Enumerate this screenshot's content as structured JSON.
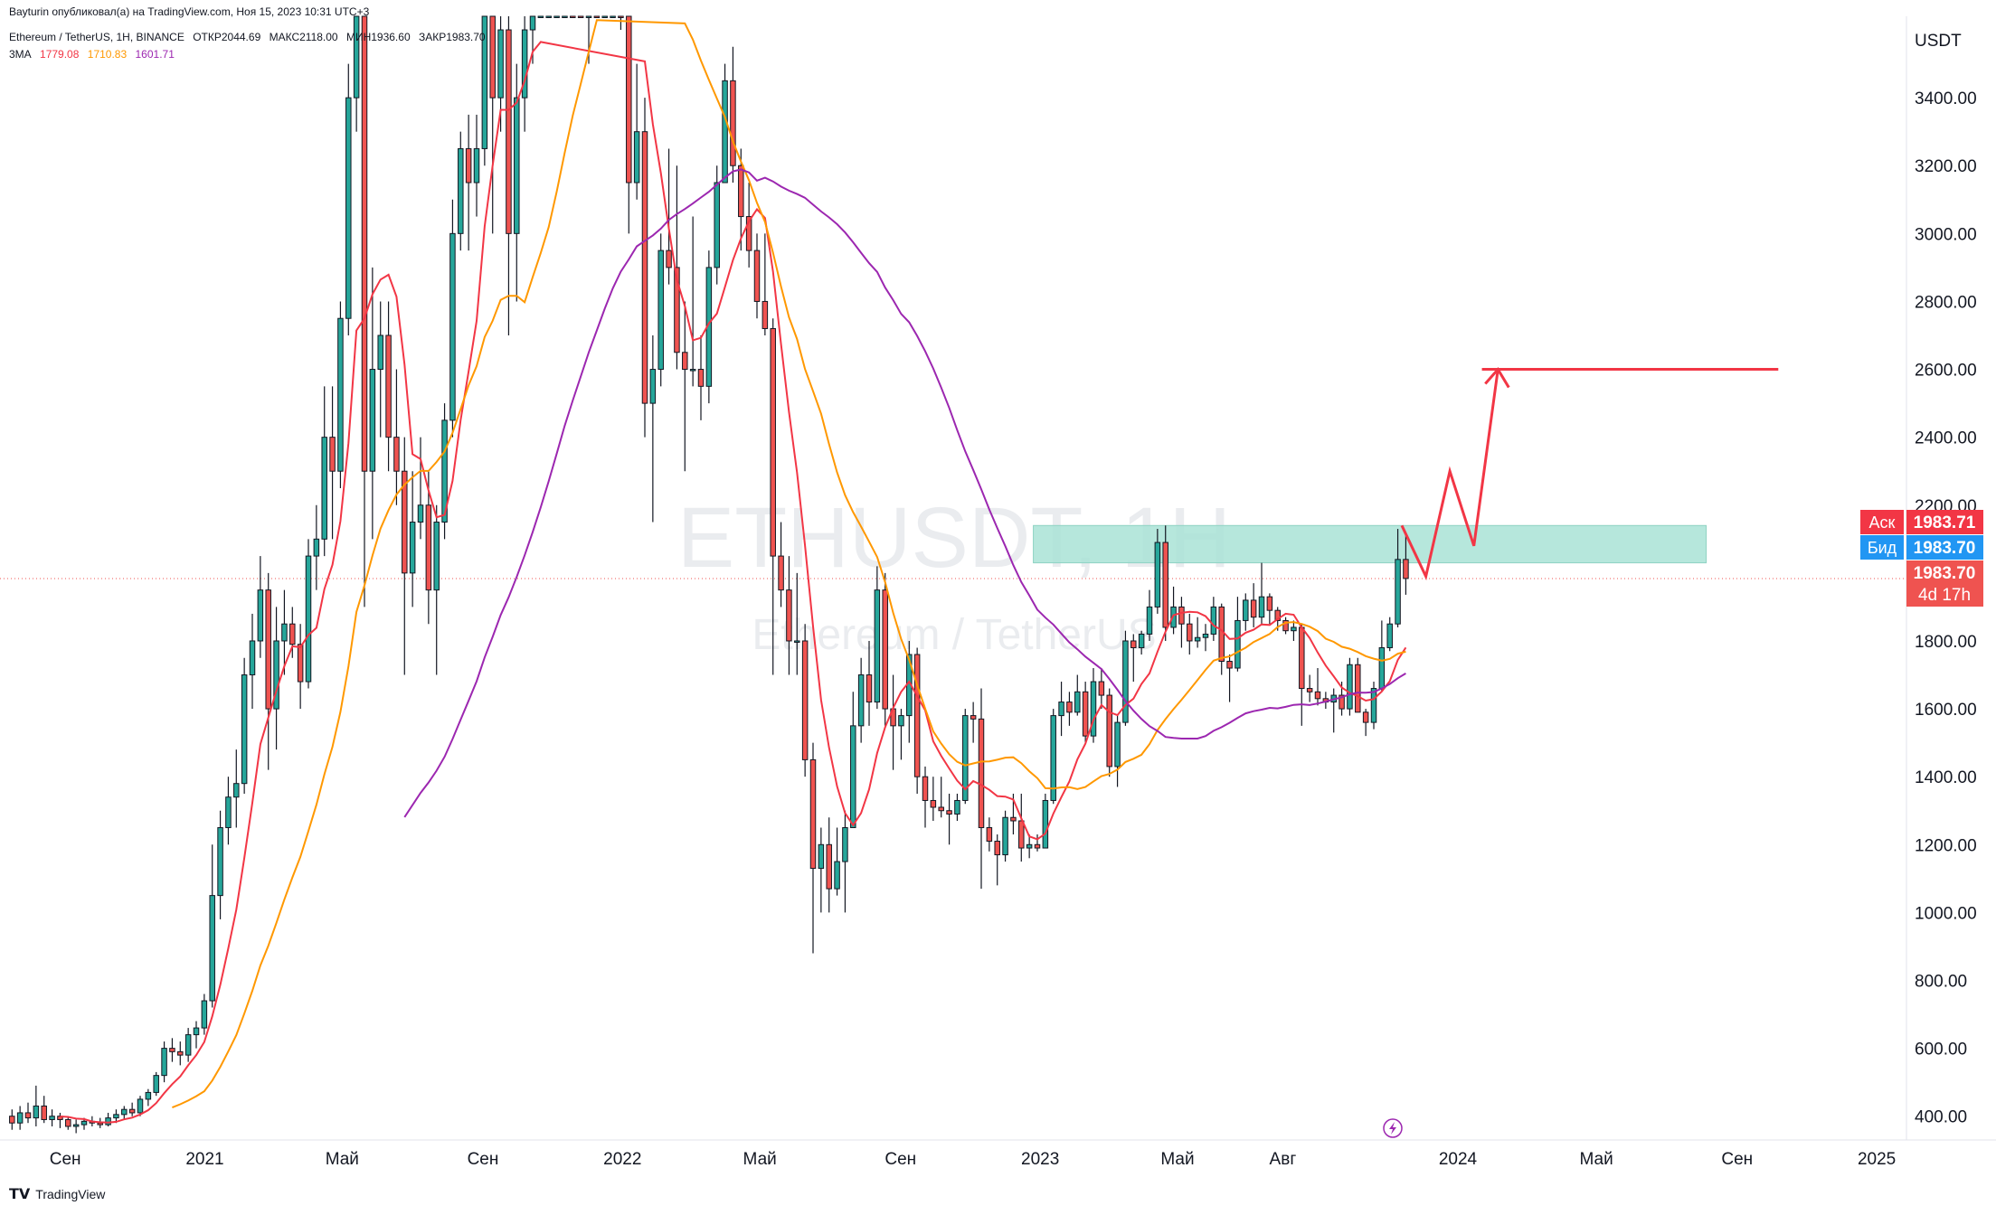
{
  "header": {
    "publisher": "Bayturin опубликовал(а) на TradingView.com, Ноя 15, 2023 10:31 UTC+3",
    "symbol_desc": "Ethereum / TetherUS, 1Н, BINANCE",
    "open": "ОТКР2044.69",
    "high": "МАКС2118.00",
    "low": "МИН1936.60",
    "close": "ЗАКР1983.70",
    "ma_label": "3MA",
    "ma_values": [
      "1779.08",
      "1710.83",
      "1601.71"
    ],
    "ma_colors": [
      "#f23645",
      "#ff9800",
      "#9c27b0"
    ]
  },
  "watermark": {
    "title": "ETHUSDT, 1H",
    "subtitle": "Ethereum / TetherUS"
  },
  "price_axis": {
    "currency": "USDT",
    "ticks": [
      "3400.00",
      "3200.00",
      "3000.00",
      "2800.00",
      "2600.00",
      "2400.00",
      "2200.00",
      "2000.00",
      "1800.00",
      "1600.00",
      "1400.00",
      "1200.00",
      "1000.00",
      "800.00",
      "600.00",
      "400.00"
    ]
  },
  "time_axis": {
    "ticks": [
      "Сен",
      "2021",
      "Май",
      "Сен",
      "2022",
      "Май",
      "Сен",
      "2023",
      "Май",
      "Авг",
      "2024",
      "Май",
      "Сен",
      "2025"
    ]
  },
  "price_tags": {
    "ask_label": "Аск",
    "ask_value": "1983.71",
    "bid_label": "Бид",
    "bid_value": "1983.70",
    "last_value": "1983.70",
    "countdown": "4d 17h",
    "ask_color": "#f23645",
    "bid_color": "#2196f3"
  },
  "footer": {
    "brand": "TradingView"
  },
  "chart_data": {
    "type": "candlestick",
    "symbol": "ETHUSDT",
    "ylim": [
      330,
      3640
    ],
    "x_range": [
      "2020-07-06",
      "2025-01-27"
    ],
    "up_color": "#26a69a",
    "down_color": "#ef5350",
    "candles_weekly_ohlc": [
      [
        "2020-07-13",
        400,
        420,
        360,
        380
      ],
      [
        "2020-07-20",
        380,
        430,
        360,
        410
      ],
      [
        "2020-07-27",
        410,
        440,
        380,
        395
      ],
      [
        "2020-08-03",
        395,
        490,
        370,
        430
      ],
      [
        "2020-08-10",
        430,
        460,
        380,
        390
      ],
      [
        "2020-08-17",
        390,
        420,
        370,
        400
      ],
      [
        "2020-08-24",
        400,
        410,
        365,
        390
      ],
      [
        "2020-08-31",
        390,
        400,
        360,
        370
      ],
      [
        "2020-09-07",
        370,
        390,
        350,
        375
      ],
      [
        "2020-09-14",
        375,
        395,
        360,
        385
      ],
      [
        "2020-09-21",
        385,
        400,
        370,
        380
      ],
      [
        "2020-09-28",
        380,
        395,
        365,
        375
      ],
      [
        "2020-10-05",
        375,
        410,
        370,
        395
      ],
      [
        "2020-10-12",
        395,
        420,
        380,
        405
      ],
      [
        "2020-10-19",
        405,
        430,
        390,
        420
      ],
      [
        "2020-10-26",
        420,
        440,
        400,
        410
      ],
      [
        "2020-11-02",
        410,
        460,
        400,
        450
      ],
      [
        "2020-11-09",
        450,
        480,
        430,
        470
      ],
      [
        "2020-11-16",
        470,
        530,
        460,
        520
      ],
      [
        "2020-11-23",
        520,
        620,
        500,
        600
      ],
      [
        "2020-11-30",
        600,
        630,
        560,
        590
      ],
      [
        "2020-12-07",
        590,
        620,
        550,
        580
      ],
      [
        "2020-12-14",
        580,
        660,
        560,
        640
      ],
      [
        "2020-12-21",
        640,
        680,
        600,
        660
      ],
      [
        "2020-12-28",
        660,
        760,
        640,
        740
      ],
      [
        "2021-01-04",
        740,
        1200,
        720,
        1050
      ],
      [
        "2021-01-11",
        1050,
        1300,
        980,
        1250
      ],
      [
        "2021-01-18",
        1250,
        1400,
        1200,
        1340
      ],
      [
        "2021-01-25",
        1340,
        1480,
        1250,
        1380
      ],
      [
        "2021-02-01",
        1380,
        1750,
        1350,
        1700
      ],
      [
        "2021-02-08",
        1700,
        1880,
        1600,
        1800
      ],
      [
        "2021-02-15",
        1800,
        2050,
        1750,
        1950
      ],
      [
        "2021-02-22",
        1950,
        2000,
        1420,
        1600
      ],
      [
        "2021-03-01",
        1600,
        1900,
        1480,
        1800
      ],
      [
        "2021-03-08",
        1800,
        1950,
        1700,
        1850
      ],
      [
        "2021-03-15",
        1850,
        1900,
        1750,
        1790
      ],
      [
        "2021-03-22",
        1790,
        1850,
        1600,
        1680
      ],
      [
        "2021-03-29",
        1680,
        2100,
        1660,
        2050
      ],
      [
        "2021-04-05",
        2050,
        2200,
        1950,
        2100
      ],
      [
        "2021-04-12",
        2100,
        2550,
        2050,
        2400
      ],
      [
        "2021-04-19",
        2400,
        2550,
        2100,
        2300
      ],
      [
        "2021-04-26",
        2300,
        2800,
        2250,
        2750
      ],
      [
        "2021-05-03",
        2750,
        3500,
        2700,
        3400
      ],
      [
        "2021-05-10",
        3400,
        4200,
        3300,
        4000
      ],
      [
        "2021-05-17",
        4000,
        4100,
        1900,
        2300
      ],
      [
        "2021-05-24",
        2300,
        2900,
        2100,
        2600
      ],
      [
        "2021-05-31",
        2600,
        2800,
        2400,
        2700
      ],
      [
        "2021-06-07",
        2700,
        2800,
        2300,
        2400
      ],
      [
        "2021-06-14",
        2400,
        2600,
        2200,
        2300
      ],
      [
        "2021-06-21",
        2300,
        2400,
        1700,
        2000
      ],
      [
        "2021-06-28",
        2000,
        2300,
        1900,
        2150
      ],
      [
        "2021-07-05",
        2150,
        2400,
        2100,
        2200
      ],
      [
        "2021-07-12",
        2200,
        2300,
        1850,
        1950
      ],
      [
        "2021-07-19",
        1950,
        2200,
        1700,
        2150
      ],
      [
        "2021-07-26",
        2150,
        2500,
        2100,
        2450
      ],
      [
        "2021-08-02",
        2450,
        3100,
        2400,
        3000
      ],
      [
        "2021-08-09",
        3000,
        3300,
        2950,
        3250
      ],
      [
        "2021-08-16",
        3250,
        3350,
        2950,
        3150
      ],
      [
        "2021-08-23",
        3150,
        3350,
        3050,
        3250
      ],
      [
        "2021-08-30",
        3250,
        4000,
        3200,
        3900
      ],
      [
        "2021-09-06",
        3900,
        4000,
        3000,
        3400
      ],
      [
        "2021-09-13",
        3400,
        3650,
        3300,
        3600
      ],
      [
        "2021-09-20",
        3600,
        3650,
        2700,
        3000
      ],
      [
        "2021-09-27",
        3000,
        3500,
        2800,
        3400
      ],
      [
        "2021-10-04",
        3400,
        3650,
        3300,
        3600
      ],
      [
        "2021-10-11",
        3600,
        3900,
        3500,
        3850
      ],
      [
        "2021-10-18",
        3850,
        4200,
        3800,
        4100
      ],
      [
        "2021-10-25",
        4100,
        4450,
        3900,
        4300
      ],
      [
        "2021-11-01",
        4300,
        4700,
        4200,
        4600
      ],
      [
        "2021-11-08",
        4600,
        4900,
        4500,
        4700
      ],
      [
        "2021-11-15",
        4700,
        4750,
        4100,
        4300
      ],
      [
        "2021-11-22",
        4300,
        4500,
        4000,
        4100
      ],
      [
        "2021-11-29",
        4100,
        4800,
        3500,
        4200
      ],
      [
        "2021-12-06",
        4200,
        4400,
        3800,
        3900
      ],
      [
        "2021-12-13",
        3900,
        4200,
        3650,
        3950
      ],
      [
        "2021-12-20",
        3950,
        4200,
        3900,
        4050
      ],
      [
        "2021-12-27",
        4050,
        4150,
        3600,
        3700
      ],
      [
        "2022-01-03",
        3700,
        3850,
        3000,
        3150
      ],
      [
        "2022-01-10",
        3150,
        3500,
        3100,
        3300
      ],
      [
        "2022-01-17",
        3300,
        3400,
        2400,
        2500
      ],
      [
        "2022-01-24",
        2500,
        2700,
        2150,
        2600
      ],
      [
        "2022-01-31",
        2600,
        3000,
        2550,
        2950
      ],
      [
        "2022-02-07",
        2950,
        3250,
        2850,
        2900
      ],
      [
        "2022-02-14",
        2900,
        3200,
        2600,
        2650
      ],
      [
        "2022-02-21",
        2650,
        2800,
        2300,
        2600
      ],
      [
        "2022-02-28",
        2600,
        3050,
        2550,
        2600
      ],
      [
        "2022-03-07",
        2600,
        2700,
        2450,
        2550
      ],
      [
        "2022-03-14",
        2550,
        2950,
        2500,
        2900
      ],
      [
        "2022-03-21",
        2900,
        3200,
        2850,
        3150
      ],
      [
        "2022-03-28",
        3150,
        3500,
        3200,
        3450
      ],
      [
        "2022-04-04",
        3450,
        3550,
        3150,
        3200
      ],
      [
        "2022-04-11",
        3200,
        3250,
        2950,
        3050
      ],
      [
        "2022-04-18",
        3050,
        3150,
        2900,
        2950
      ],
      [
        "2022-04-25",
        2950,
        3000,
        2750,
        2800
      ],
      [
        "2022-05-02",
        2800,
        3000,
        2700,
        2720
      ],
      [
        "2022-05-09",
        2720,
        2750,
        1700,
        2050
      ],
      [
        "2022-05-16",
        2050,
        2150,
        1900,
        1950
      ],
      [
        "2022-05-23",
        1950,
        2050,
        1700,
        1800
      ],
      [
        "2022-05-30",
        1800,
        2000,
        1700,
        1800
      ],
      [
        "2022-06-06",
        1800,
        1850,
        1400,
        1450
      ],
      [
        "2022-06-13",
        1450,
        1500,
        880,
        1130
      ],
      [
        "2022-06-20",
        1130,
        1250,
        1000,
        1200
      ],
      [
        "2022-06-27",
        1200,
        1280,
        1000,
        1070
      ],
      [
        "2022-07-04",
        1070,
        1250,
        1050,
        1150
      ],
      [
        "2022-07-11",
        1150,
        1300,
        1000,
        1250
      ],
      [
        "2022-07-18",
        1250,
        1650,
        1250,
        1550
      ],
      [
        "2022-07-25",
        1550,
        1750,
        1500,
        1700
      ],
      [
        "2022-08-01",
        1700,
        1800,
        1550,
        1620
      ],
      [
        "2022-08-08",
        1620,
        2020,
        1600,
        1950
      ],
      [
        "2022-08-15",
        1950,
        2000,
        1550,
        1600
      ],
      [
        "2022-08-22",
        1600,
        1700,
        1420,
        1550
      ],
      [
        "2022-08-29",
        1550,
        1600,
        1450,
        1580
      ],
      [
        "2022-09-05",
        1580,
        1800,
        1500,
        1760
      ],
      [
        "2022-09-12",
        1760,
        1780,
        1350,
        1400
      ],
      [
        "2022-09-19",
        1400,
        1430,
        1250,
        1330
      ],
      [
        "2022-09-26",
        1330,
        1400,
        1270,
        1310
      ],
      [
        "2022-10-03",
        1310,
        1400,
        1280,
        1300
      ],
      [
        "2022-10-10",
        1300,
        1350,
        1200,
        1290
      ],
      [
        "2022-10-17",
        1290,
        1350,
        1270,
        1330
      ],
      [
        "2022-10-24",
        1330,
        1600,
        1320,
        1580
      ],
      [
        "2022-10-31",
        1580,
        1620,
        1500,
        1570
      ],
      [
        "2022-11-07",
        1570,
        1660,
        1070,
        1250
      ],
      [
        "2022-11-14",
        1250,
        1280,
        1180,
        1210
      ],
      [
        "2022-11-21",
        1210,
        1230,
        1080,
        1170
      ],
      [
        "2022-11-28",
        1170,
        1300,
        1150,
        1280
      ],
      [
        "2022-12-05",
        1280,
        1350,
        1230,
        1270
      ],
      [
        "2022-12-12",
        1270,
        1350,
        1150,
        1190
      ],
      [
        "2022-12-19",
        1190,
        1230,
        1160,
        1200
      ],
      [
        "2022-12-26",
        1200,
        1230,
        1180,
        1190
      ],
      [
        "2023-01-02",
        1190,
        1350,
        1190,
        1330
      ],
      [
        "2023-01-09",
        1330,
        1600,
        1320,
        1580
      ],
      [
        "2023-01-16",
        1580,
        1680,
        1520,
        1620
      ],
      [
        "2023-01-23",
        1620,
        1650,
        1550,
        1590
      ],
      [
        "2023-01-30",
        1590,
        1700,
        1580,
        1650
      ],
      [
        "2023-02-06",
        1650,
        1680,
        1500,
        1520
      ],
      [
        "2023-02-13",
        1520,
        1720,
        1500,
        1680
      ],
      [
        "2023-02-20",
        1680,
        1720,
        1600,
        1640
      ],
      [
        "2023-02-27",
        1640,
        1660,
        1400,
        1430
      ],
      [
        "2023-03-06",
        1430,
        1580,
        1370,
        1560
      ],
      [
        "2023-03-13",
        1560,
        1830,
        1550,
        1800
      ],
      [
        "2023-03-20",
        1800,
        1820,
        1680,
        1780
      ],
      [
        "2023-03-27",
        1780,
        1830,
        1760,
        1820
      ],
      [
        "2023-04-03",
        1820,
        1950,
        1800,
        1900
      ],
      [
        "2023-04-10",
        1900,
        2130,
        1880,
        2090
      ],
      [
        "2023-04-17",
        2090,
        2140,
        1800,
        1840
      ],
      [
        "2023-04-24",
        1840,
        1960,
        1820,
        1900
      ],
      [
        "2023-05-01",
        1900,
        1930,
        1780,
        1850
      ],
      [
        "2023-05-08",
        1850,
        1880,
        1760,
        1800
      ],
      [
        "2023-05-15",
        1800,
        1870,
        1780,
        1810
      ],
      [
        "2023-05-22",
        1810,
        1850,
        1770,
        1820
      ],
      [
        "2023-05-29",
        1820,
        1930,
        1800,
        1900
      ],
      [
        "2023-06-05",
        1900,
        1910,
        1700,
        1740
      ],
      [
        "2023-06-12",
        1740,
        1760,
        1620,
        1720
      ],
      [
        "2023-06-19",
        1720,
        1930,
        1710,
        1860
      ],
      [
        "2023-06-26",
        1860,
        1940,
        1830,
        1920
      ],
      [
        "2023-07-03",
        1920,
        1970,
        1840,
        1870
      ],
      [
        "2023-07-10",
        1870,
        2030,
        1850,
        1930
      ],
      [
        "2023-07-17",
        1930,
        1940,
        1850,
        1890
      ],
      [
        "2023-07-24",
        1890,
        1900,
        1830,
        1860
      ],
      [
        "2023-07-31",
        1860,
        1870,
        1820,
        1830
      ],
      [
        "2023-08-07",
        1830,
        1860,
        1800,
        1840
      ],
      [
        "2023-08-14",
        1840,
        1850,
        1550,
        1660
      ],
      [
        "2023-08-21",
        1660,
        1700,
        1620,
        1650
      ],
      [
        "2023-08-28",
        1650,
        1720,
        1610,
        1630
      ],
      [
        "2023-09-04",
        1630,
        1650,
        1600,
        1620
      ],
      [
        "2023-09-11",
        1620,
        1660,
        1530,
        1640
      ],
      [
        "2023-09-18",
        1640,
        1680,
        1580,
        1600
      ],
      [
        "2023-09-25",
        1600,
        1750,
        1580,
        1730
      ],
      [
        "2023-10-02",
        1730,
        1750,
        1590,
        1590
      ],
      [
        "2023-10-09",
        1590,
        1600,
        1520,
        1560
      ],
      [
        "2023-10-16",
        1560,
        1680,
        1540,
        1660
      ],
      [
        "2023-10-23",
        1660,
        1860,
        1650,
        1780
      ],
      [
        "2023-10-30",
        1780,
        1870,
        1770,
        1850
      ],
      [
        "2023-11-06",
        1850,
        2130,
        1840,
        2040
      ],
      [
        "2023-11-13",
        2040,
        2118,
        1936,
        1984
      ]
    ],
    "moving_averages": [
      {
        "name": "MA 1779.08",
        "color": "#f23645"
      },
      {
        "name": "MA 1710.83",
        "color": "#ff9800"
      },
      {
        "name": "MA 1601.71",
        "color": "#9c27b0"
      }
    ],
    "resistance_zone": {
      "from": 2030,
      "to": 2140,
      "start": "2022-12-26",
      "end": "2024-08-05",
      "color": "#a9e3d6"
    },
    "target_level": {
      "price": 2600,
      "start": "2024-01-22",
      "end": "2024-10-07",
      "color": "#f23645"
    },
    "projection_path": [
      [
        "2023-11-13",
        2140
      ],
      [
        "2023-12-04",
        1990
      ],
      [
        "2023-12-25",
        2300
      ],
      [
        "2024-01-15",
        2080
      ],
      [
        "2024-02-05",
        2600
      ]
    ],
    "last_price_line": 1983.7
  }
}
